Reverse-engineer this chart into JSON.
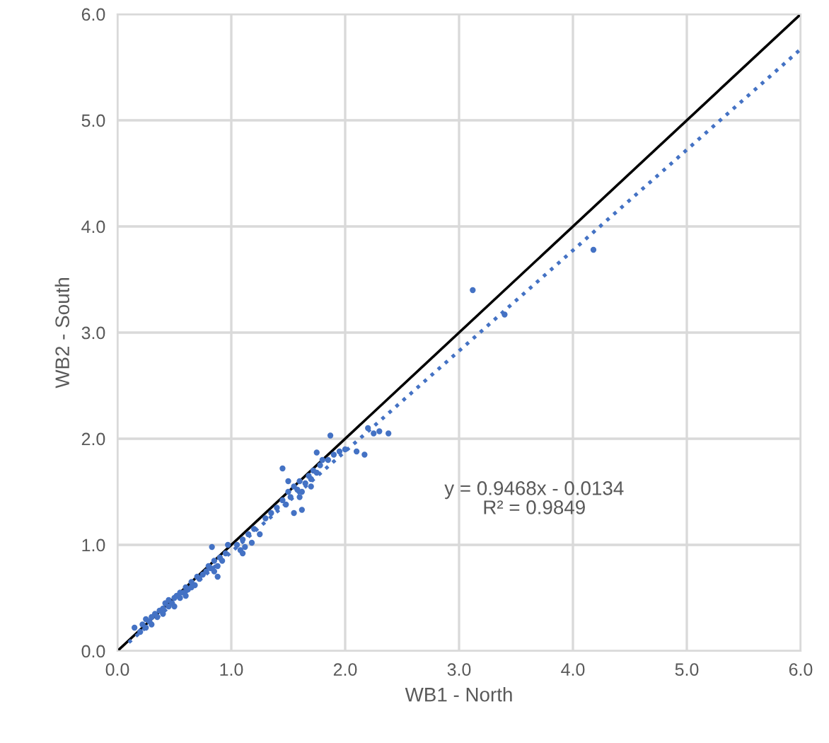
{
  "chart_data": {
    "type": "scatter",
    "xlabel": "WB1 - North",
    "ylabel": "WB2 - South",
    "xlim": [
      0,
      6
    ],
    "ylim": [
      0,
      6
    ],
    "xticks": [
      {
        "value": 0,
        "label": "0.0"
      },
      {
        "value": 1,
        "label": "1.0"
      },
      {
        "value": 2,
        "label": "2.0"
      },
      {
        "value": 3,
        "label": "3.0"
      },
      {
        "value": 4,
        "label": "4.0"
      },
      {
        "value": 5,
        "label": "5.0"
      },
      {
        "value": 6,
        "label": "6.0"
      }
    ],
    "yticks": [
      {
        "value": 0,
        "label": "0.0"
      },
      {
        "value": 1,
        "label": "1.0"
      },
      {
        "value": 2,
        "label": "2.0"
      },
      {
        "value": 3,
        "label": "3.0"
      },
      {
        "value": 4,
        "label": "4.0"
      },
      {
        "value": 5,
        "label": "5.0"
      },
      {
        "value": 6,
        "label": "6.0"
      }
    ],
    "grid": true,
    "annotations": [
      "y = 0.9468x - 0.0134",
      "R² = 0.9849"
    ],
    "series": [
      {
        "color": "#4472c4",
        "marker": "circle",
        "x": [
          0.15,
          0.2,
          0.22,
          0.25,
          0.25,
          0.28,
          0.3,
          0.3,
          0.33,
          0.35,
          0.37,
          0.4,
          0.4,
          0.42,
          0.45,
          0.45,
          0.48,
          0.5,
          0.5,
          0.52,
          0.55,
          0.55,
          0.58,
          0.6,
          0.6,
          0.62,
          0.65,
          0.65,
          0.68,
          0.7,
          0.72,
          0.75,
          0.78,
          0.8,
          0.82,
          0.85,
          0.85,
          0.88,
          0.9,
          0.92,
          0.95,
          0.97,
          0.83,
          0.88,
          1.05,
          1.08,
          1.1,
          1.12,
          1.15,
          1.18,
          1.2,
          1.25,
          1.1,
          1.3,
          1.35,
          1.4,
          1.45,
          1.48,
          1.5,
          1.52,
          1.55,
          1.58,
          1.6,
          1.62,
          1.65,
          1.68,
          1.7,
          1.72,
          1.75,
          1.78,
          1.8,
          1.5,
          1.6,
          1.7,
          1.55,
          1.62,
          1.45,
          1.75,
          1.85,
          1.9,
          1.95,
          2.0,
          1.87,
          2.1,
          2.17,
          2.2,
          2.25,
          2.3,
          2.38,
          3.12,
          3.4,
          4.18
        ],
        "values": [
          0.22,
          0.18,
          0.25,
          0.22,
          0.3,
          0.28,
          0.32,
          0.25,
          0.35,
          0.32,
          0.38,
          0.4,
          0.35,
          0.45,
          0.42,
          0.48,
          0.45,
          0.5,
          0.42,
          0.52,
          0.5,
          0.55,
          0.55,
          0.6,
          0.52,
          0.58,
          0.65,
          0.6,
          0.62,
          0.7,
          0.68,
          0.72,
          0.75,
          0.8,
          0.78,
          0.85,
          0.75,
          0.8,
          0.88,
          0.85,
          0.92,
          1.0,
          0.98,
          0.7,
          1.0,
          0.95,
          1.05,
          0.98,
          1.1,
          1.02,
          1.15,
          1.1,
          0.92,
          1.25,
          1.3,
          1.35,
          1.42,
          1.38,
          1.5,
          1.45,
          1.55,
          1.52,
          1.6,
          1.5,
          1.58,
          1.65,
          1.62,
          1.7,
          1.68,
          1.75,
          1.8,
          1.6,
          1.45,
          1.55,
          1.3,
          1.33,
          1.72,
          1.87,
          1.8,
          1.85,
          1.88,
          1.9,
          2.03,
          1.88,
          1.85,
          2.1,
          2.05,
          2.07,
          2.05,
          3.4,
          3.17,
          3.78
        ]
      },
      {
        "type": "line",
        "color": "#000000",
        "line_style": "solid",
        "marker": "none",
        "x": [
          0,
          6
        ],
        "values": [
          0,
          6
        ]
      },
      {
        "type": "line",
        "color": "#4472c4",
        "line_style": "dotted",
        "marker": "none",
        "x": [
          0.1,
          6
        ],
        "values": [
          0.08,
          5.67
        ]
      }
    ]
  }
}
